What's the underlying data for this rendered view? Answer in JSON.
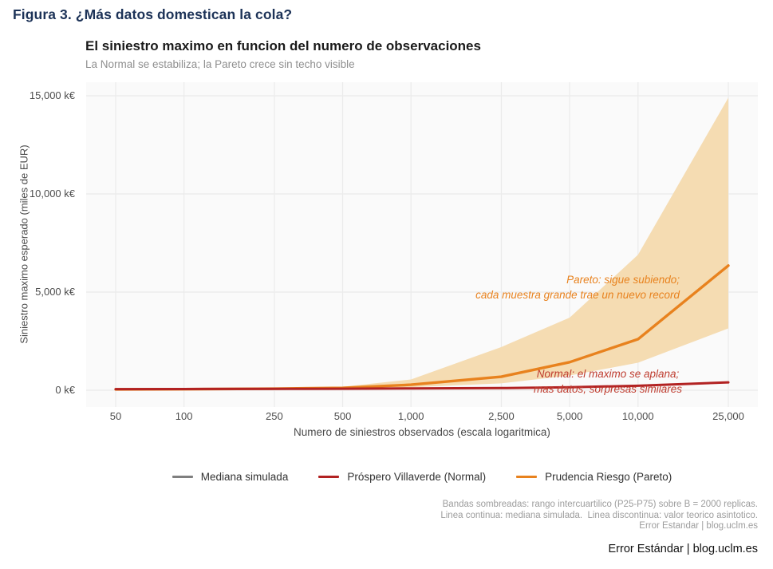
{
  "figure_title": "Figura 3. ¿Más datos domestican la cola?",
  "chart": {
    "title": "El siniestro maximo en funcion del numero de observaciones",
    "subtitle": "La Normal se estabiliza; la Pareto crece sin techo visible",
    "y_axis": {
      "label": "Siniestro maximo esperado (miles de EUR)",
      "tick_labels": [
        "0 k€",
        "5,000 k€",
        "10,000 k€",
        "15,000 k€"
      ]
    },
    "x_axis": {
      "label": "Numero de siniestros observados (escala logaritmica)",
      "tick_labels": [
        "50",
        "100",
        "250",
        "500",
        "1,000",
        "2,500",
        "5,000",
        "10,000",
        "25,000"
      ]
    },
    "legend": [
      {
        "label": "Mediana simulada",
        "color": "#7f7f7f"
      },
      {
        "label": "Próspero Villaverde (Normal)",
        "color": "#b22222"
      },
      {
        "label": "Prudencia Riesgo (Pareto)",
        "color": "#e8821e"
      }
    ],
    "annotations": {
      "pareto": {
        "line1": "Pareto: sigue subiendo;",
        "line2": "cada muestra grande trae un nuevo record",
        "color": "#e8821e"
      },
      "normal": {
        "line1": "Normal: el maximo se aplana;",
        "line2": "mas datos, sorpresas similares",
        "color": "#bf3d30"
      }
    },
    "caption_lines": [
      "Bandas sombreadas: rango intercuartilico (P25-P75) sobre B = 2000 replicas.",
      "Linea continua: mediana simulada.  Linea discontinua: valor teorico asintotico.",
      "Error Estandar | blog.uclm.es"
    ]
  },
  "footer": "Error Estándar | blog.uclm.es",
  "chart_data": {
    "type": "line",
    "title": "El siniestro maximo en funcion del numero de observaciones",
    "subtitle": "La Normal se estabiliza; la Pareto crece sin techo visible",
    "xlabel": "Numero de siniestros observados (escala logaritmica)",
    "ylabel": "Siniestro maximo esperado (miles de EUR)",
    "x_scale": "log",
    "grid": true,
    "legend_position": "bottom",
    "units": "miles de EUR (k€)",
    "x": [
      50,
      100,
      250,
      500,
      1000,
      2500,
      5000,
      10000,
      25000
    ],
    "ylim": [
      0,
      15690
    ],
    "y_ticks": [
      0,
      5000,
      10000,
      15000
    ],
    "series": [
      {
        "name": "Próspero Villaverde (Normal)",
        "color": "#b22222",
        "median": [
          55,
          62,
          70,
          78,
          90,
          110,
          150,
          230,
          400
        ]
      },
      {
        "name": "Prudencia Riesgo (Pareto)",
        "color": "#e8821e",
        "median": [
          45,
          55,
          80,
          120,
          280,
          690,
          1430,
          2600,
          6350
        ],
        "band_p25": [
          38,
          45,
          55,
          60,
          150,
          350,
          750,
          1400,
          3150
        ],
        "band_p75": [
          52,
          62,
          90,
          180,
          550,
          2200,
          3700,
          6900,
          14900
        ],
        "band_fill": "#f5dcb2",
        "band_meaning": "rango intercuartilico (P25-P75) sobre B = 2000 replicas"
      }
    ]
  }
}
